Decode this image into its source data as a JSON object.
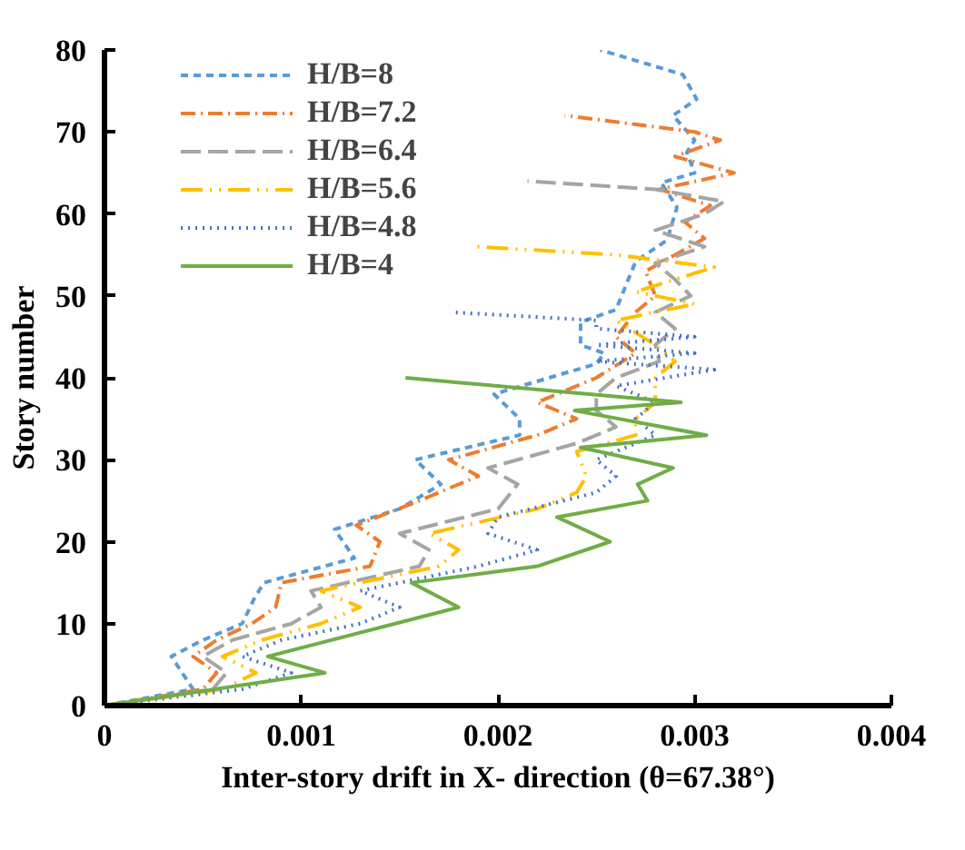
{
  "chart_data": {
    "type": "line",
    "xlabel": "Inter-story drift in X- direction (θ=67.38°)",
    "ylabel": "Story number",
    "xlim": [
      0,
      0.004
    ],
    "xticks": [
      0,
      0.001,
      0.002,
      0.003,
      0.004
    ],
    "ylim": [
      0,
      80
    ],
    "yticks": [
      0,
      10,
      20,
      30,
      40,
      50,
      60,
      70,
      80
    ],
    "grid": false,
    "legend": "top left",
    "marker": "none",
    "series": [
      {
        "name": "H/B=8",
        "color": "#5b9bd5",
        "line_style": "dashed",
        "x": [
          0,
          0.00045,
          0.00034,
          0.0005,
          0.0007,
          0.00076,
          0.00081,
          0.00127,
          0.00117,
          0.0015,
          0.00171,
          0.00158,
          0.00211,
          0.00211,
          0.00198,
          0.00226,
          0.0025,
          0.00254,
          0.00242,
          0.00242,
          0.0026,
          0.0027,
          0.00286,
          0.00291,
          0.00283,
          0.003,
          0.00296,
          0.003,
          0.00289,
          0.00301,
          0.00294,
          0.00252
        ],
        "values": [
          0,
          2,
          6,
          8,
          10,
          13,
          15,
          18,
          21.5,
          24,
          27,
          30,
          33,
          35,
          38,
          40,
          41.7,
          43,
          44,
          46.8,
          48.3,
          54.2,
          56.8,
          60.8,
          63.8,
          65,
          67.5,
          69,
          72,
          74,
          77,
          80
        ]
      },
      {
        "name": "H/B=7.2",
        "color": "#ed7d31",
        "line_style": "dashdot",
        "x": [
          0,
          0.0005,
          0.00057,
          0.00045,
          0.00057,
          0.00075,
          0.00087,
          0.0009,
          0.00135,
          0.0014,
          0.00128,
          0.0016,
          0.0019,
          0.00175,
          0.0022,
          0.0024,
          0.0022,
          0.0025,
          0.0027,
          0.0026,
          0.0027,
          0.0028,
          0.00275,
          0.0029,
          0.00305,
          0.00295,
          0.00308,
          0.00282,
          0.0032,
          0.0029,
          0.00313,
          0.003,
          0.00234
        ],
        "values": [
          0,
          2,
          4,
          6,
          8,
          10,
          12,
          15,
          17,
          20,
          22,
          25,
          28,
          30,
          33,
          35,
          37,
          40,
          43,
          45,
          48,
          50,
          53,
          55,
          57,
          59,
          61,
          63,
          65,
          67,
          69,
          70,
          72
        ]
      },
      {
        "name": "H/B=6.4",
        "color": "#a5a5a5",
        "line_style": "longdash",
        "x": [
          0,
          0.00055,
          0.00062,
          0.0005,
          0.00065,
          0.00095,
          0.0011,
          0.00105,
          0.0016,
          0.00165,
          0.0015,
          0.002,
          0.0021,
          0.00195,
          0.0024,
          0.0026,
          0.0025,
          0.0025,
          0.0026,
          0.00282,
          0.0028,
          0.0029,
          0.0028,
          0.00298,
          0.0029,
          0.0028,
          0.00305,
          0.0028,
          0.00305,
          0.00315,
          0.0028,
          0.00215
        ],
        "values": [
          0,
          2,
          4,
          6,
          8,
          10,
          12,
          14,
          17,
          19,
          21,
          24,
          27,
          29,
          32,
          34,
          36,
          38,
          40,
          42,
          44,
          46,
          48,
          50,
          52,
          54,
          56,
          58,
          60,
          61.5,
          63,
          64
        ]
      },
      {
        "name": "H/B=5.6",
        "color": "#ffc000",
        "line_style": "dashdotdot",
        "x": [
          0,
          0.0006,
          0.00077,
          0.0006,
          0.0008,
          0.0011,
          0.0013,
          0.0011,
          0.0017,
          0.0018,
          0.00165,
          0.0022,
          0.0024,
          0.00245,
          0.0024,
          0.0027,
          0.0027,
          0.0028,
          0.0028,
          0.0029,
          0.0028,
          0.0026,
          0.003,
          0.0027,
          0.0029,
          0.0031,
          0.0026,
          0.00189
        ],
        "values": [
          0,
          2,
          4,
          6,
          8,
          10,
          12,
          14,
          17,
          19,
          21,
          24,
          26,
          28,
          31,
          33,
          35,
          37,
          40,
          42,
          44,
          47,
          49,
          50.5,
          52,
          53.5,
          55,
          56
        ]
      },
      {
        "name": "H/B=4.8",
        "color": "#4472c4",
        "line_style": "dotted",
        "x": [
          0,
          0.0007,
          0.00095,
          0.0007,
          0.0009,
          0.0013,
          0.0015,
          0.0013,
          0.0019,
          0.0022,
          0.00195,
          0.002,
          0.0025,
          0.0026,
          0.0025,
          0.0028,
          0.0027,
          0.0028,
          0.0026,
          0.0031,
          0.0025,
          0.003,
          0.0025,
          0.003,
          0.0025,
          0.0025,
          0.00176
        ],
        "values": [
          0,
          2,
          4,
          6,
          8,
          10,
          12,
          14,
          17,
          19,
          21,
          23,
          26,
          28,
          30,
          33,
          35,
          37,
          39,
          41,
          42,
          43,
          44,
          45,
          46,
          47,
          48
        ]
      },
      {
        "name": "H/B=4",
        "color": "#70ad47",
        "line_style": "solid",
        "x": [
          0,
          0.00112,
          0.00083,
          0.0018,
          0.00156,
          0.0022,
          0.00257,
          0.0023,
          0.00276,
          0.00271,
          0.00289,
          0.00242,
          0.00306,
          0.00239,
          0.00293,
          0.00153
        ],
        "values": [
          0,
          4,
          6,
          12,
          15,
          17,
          20,
          23,
          25,
          27,
          29,
          31.5,
          33,
          36,
          37,
          40
        ]
      }
    ]
  }
}
